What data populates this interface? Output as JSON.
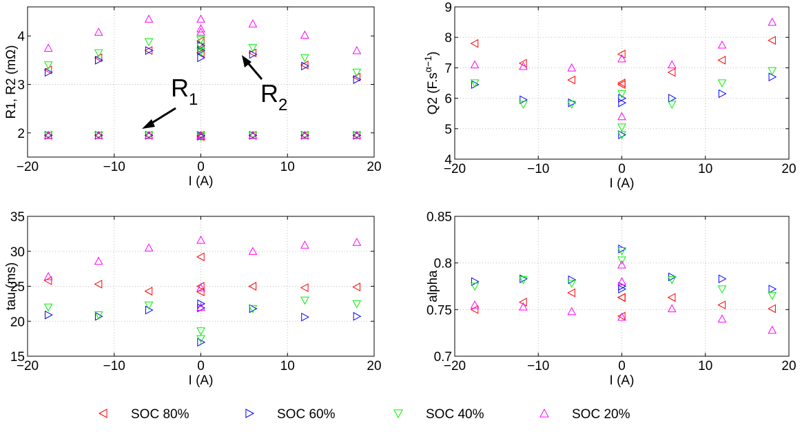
{
  "colors": {
    "soc80": "#ff0000",
    "soc60": "#0000ff",
    "soc40": "#00ee00",
    "soc20": "#ff00ff",
    "grid": "#bbbbbb",
    "axis": "#000000",
    "arrow": "#000000"
  },
  "legend": [
    {
      "key": "soc80",
      "label": "SOC 80%",
      "marker": "triangle-left"
    },
    {
      "key": "soc60",
      "label": "SOC 60%",
      "marker": "triangle-right"
    },
    {
      "key": "soc40",
      "label": "SOC 40%",
      "marker": "triangle-down"
    },
    {
      "key": "soc20",
      "label": "SOC 20%",
      "marker": "triangle-up"
    }
  ],
  "chart_data": [
    {
      "type": "scatter",
      "id": "r1r2",
      "xlabel": "I (A)",
      "ylabel": "R1, R2 (mΩ)",
      "xlim": [
        -20,
        20
      ],
      "ylim": [
        1.5,
        4.6
      ],
      "xticks": [
        -20,
        -10,
        0,
        10,
        20
      ],
      "yticks": [
        2,
        3,
        4
      ],
      "xtick_labels": [
        "−20",
        "−10",
        "0",
        "10",
        "20"
      ],
      "ytick_labels": [
        "2",
        "3",
        "4"
      ],
      "grid": true,
      "annotations": [
        {
          "text": "R",
          "sub": "1",
          "x": -8,
          "y": 2.9
        },
        {
          "text": "R",
          "sub": "2",
          "x": 6.3,
          "y": 3.0
        }
      ],
      "series": [
        {
          "key": "soc80",
          "points": [
            [
              -17.6,
              3.3
            ],
            [
              -11.8,
              3.55
            ],
            [
              -6,
              3.7
            ],
            [
              0,
              3.9
            ],
            [
              0,
              3.75
            ],
            [
              0,
              3.65
            ],
            [
              6,
              3.65
            ],
            [
              12,
              3.4
            ],
            [
              18,
              3.15
            ],
            [
              -17.6,
              1.95
            ],
            [
              -11.8,
              1.95
            ],
            [
              -6,
              1.95
            ],
            [
              0,
              1.95
            ],
            [
              0,
              1.92
            ],
            [
              6,
              1.95
            ],
            [
              12,
              1.95
            ],
            [
              18,
              1.95
            ]
          ]
        },
        {
          "key": "soc60",
          "points": [
            [
              -17.6,
              3.25
            ],
            [
              -11.8,
              3.5
            ],
            [
              -6,
              3.7
            ],
            [
              0,
              3.8
            ],
            [
              0,
              3.7
            ],
            [
              0,
              3.55
            ],
            [
              6,
              3.62
            ],
            [
              12,
              3.38
            ],
            [
              18,
              3.1
            ],
            [
              -17.6,
              1.95
            ],
            [
              -11.8,
              1.95
            ],
            [
              -6,
              1.95
            ],
            [
              0,
              1.95
            ],
            [
              0,
              1.93
            ],
            [
              6,
              1.95
            ],
            [
              12,
              1.95
            ],
            [
              18,
              1.95
            ]
          ]
        },
        {
          "key": "soc40",
          "points": [
            [
              -17.6,
              3.4
            ],
            [
              -11.8,
              3.65
            ],
            [
              -6,
              3.88
            ],
            [
              0,
              3.92
            ],
            [
              0,
              3.78
            ],
            [
              0,
              3.68
            ],
            [
              6,
              3.76
            ],
            [
              12,
              3.55
            ],
            [
              18,
              3.25
            ],
            [
              -17.6,
              1.95
            ],
            [
              -11.8,
              1.95
            ],
            [
              -6,
              1.95
            ],
            [
              0,
              1.95
            ],
            [
              0,
              1.92
            ],
            [
              6,
              1.95
            ],
            [
              12,
              1.95
            ],
            [
              18,
              1.95
            ]
          ]
        },
        {
          "key": "soc20",
          "points": [
            [
              -17.6,
              3.75
            ],
            [
              -11.8,
              4.08
            ],
            [
              -6,
              4.35
            ],
            [
              0,
              4.35
            ],
            [
              0,
              4.15
            ],
            [
              0,
              4.08
            ],
            [
              6,
              4.25
            ],
            [
              12,
              4.02
            ],
            [
              18,
              3.7
            ],
            [
              -17.6,
              1.95
            ],
            [
              -11.8,
              1.95
            ],
            [
              -6,
              1.95
            ],
            [
              0,
              1.95
            ],
            [
              0,
              1.93
            ],
            [
              6,
              1.95
            ],
            [
              12,
              1.95
            ],
            [
              18,
              1.95
            ]
          ]
        }
      ]
    },
    {
      "type": "scatter",
      "id": "q2",
      "xlabel": "I (A)",
      "ylabel": "Q2 (F.s",
      "ylabel_sup": "α−1",
      "ylabel_end": ")",
      "xlim": [
        -20,
        20
      ],
      "ylim": [
        4,
        9
      ],
      "xticks": [
        -20,
        -10,
        0,
        10,
        20
      ],
      "yticks": [
        4,
        5,
        6,
        7,
        8,
        9
      ],
      "xtick_labels": [
        "−20",
        "−10",
        "0",
        "10",
        "20"
      ],
      "ytick_labels": [
        "4",
        "5",
        "6",
        "7",
        "8",
        "9"
      ],
      "grid": true,
      "series": [
        {
          "key": "soc80",
          "points": [
            [
              -17.6,
              7.8
            ],
            [
              -11.8,
              7.15
            ],
            [
              -6,
              6.6
            ],
            [
              0,
              7.45
            ],
            [
              0,
              6.5
            ],
            [
              0,
              6.45
            ],
            [
              6,
              6.85
            ],
            [
              12,
              7.25
            ],
            [
              18,
              7.9
            ]
          ]
        },
        {
          "key": "soc60",
          "points": [
            [
              -17.6,
              6.45
            ],
            [
              -11.8,
              5.95
            ],
            [
              -6,
              5.85
            ],
            [
              0,
              5.85
            ],
            [
              0,
              6.0
            ],
            [
              0,
              4.8
            ],
            [
              6,
              6.0
            ],
            [
              12,
              6.15
            ],
            [
              18,
              6.7
            ]
          ]
        },
        {
          "key": "soc40",
          "points": [
            [
              -17.6,
              6.5
            ],
            [
              -11.8,
              5.8
            ],
            [
              -6,
              5.8
            ],
            [
              0,
              6.15
            ],
            [
              0,
              5.05
            ],
            [
              0,
              4.8
            ],
            [
              6,
              5.8
            ],
            [
              12,
              6.5
            ],
            [
              18,
              6.9
            ]
          ]
        },
        {
          "key": "soc20",
          "points": [
            [
              -17.6,
              7.1
            ],
            [
              -11.8,
              7.05
            ],
            [
              -6,
              7.0
            ],
            [
              0,
              7.3
            ],
            [
              0,
              5.4
            ],
            [
              6,
              7.1
            ],
            [
              12,
              7.75
            ],
            [
              18,
              8.5
            ]
          ]
        }
      ]
    },
    {
      "type": "scatter",
      "id": "tau",
      "xlabel": "I (A)",
      "ylabel": "tau (ms)",
      "xlim": [
        -20,
        20
      ],
      "ylim": [
        15,
        35
      ],
      "xticks": [
        -20,
        -10,
        0,
        10,
        20
      ],
      "yticks": [
        15,
        20,
        25,
        30,
        35
      ],
      "xtick_labels": [
        "−20",
        "−10",
        "0",
        "10",
        "20"
      ],
      "ytick_labels": [
        "15",
        "20",
        "25",
        "30",
        "35"
      ],
      "grid": true,
      "series": [
        {
          "key": "soc80",
          "points": [
            [
              -17.6,
              25.8
            ],
            [
              -11.8,
              25.3
            ],
            [
              -6,
              24.3
            ],
            [
              0,
              29.2
            ],
            [
              0,
              25.0
            ],
            [
              0,
              24.2
            ],
            [
              6,
              25.0
            ],
            [
              12,
              24.8
            ],
            [
              18,
              24.9
            ]
          ]
        },
        {
          "key": "soc60",
          "points": [
            [
              -17.6,
              20.9
            ],
            [
              -11.8,
              20.7
            ],
            [
              -6,
              21.6
            ],
            [
              0,
              22.5
            ],
            [
              0,
              21.9
            ],
            [
              0,
              17.0
            ],
            [
              6,
              21.8
            ],
            [
              12,
              20.6
            ],
            [
              18,
              20.7
            ]
          ]
        },
        {
          "key": "soc40",
          "points": [
            [
              -17.6,
              22.0
            ],
            [
              -11.8,
              20.9
            ],
            [
              -6,
              22.3
            ],
            [
              0,
              18.6
            ],
            [
              0,
              17.5
            ],
            [
              6,
              21.8
            ],
            [
              12,
              23.0
            ],
            [
              18,
              22.5
            ]
          ]
        },
        {
          "key": "soc20",
          "points": [
            [
              -17.6,
              26.4
            ],
            [
              -11.8,
              28.6
            ],
            [
              -6,
              30.5
            ],
            [
              0,
              31.6
            ],
            [
              0,
              24.8
            ],
            [
              0,
              22.0
            ],
            [
              6,
              30.0
            ],
            [
              12,
              30.9
            ],
            [
              18,
              31.3
            ]
          ]
        }
      ]
    },
    {
      "type": "scatter",
      "id": "alpha",
      "xlabel": "I (A)",
      "ylabel": "alpha",
      "xlim": [
        -20,
        20
      ],
      "ylim": [
        0.7,
        0.85
      ],
      "xticks": [
        -20,
        -10,
        0,
        10,
        20
      ],
      "yticks": [
        0.7,
        0.75,
        0.8,
        0.85
      ],
      "xtick_labels": [
        "−20",
        "−10",
        "0",
        "10",
        "20"
      ],
      "ytick_labels": [
        "0.7",
        "0.75",
        "0.8",
        "0.85"
      ],
      "grid": true,
      "series": [
        {
          "key": "soc80",
          "points": [
            [
              -17.6,
              0.75
            ],
            [
              -11.8,
              0.758
            ],
            [
              -6,
              0.768
            ],
            [
              0,
              0.763
            ],
            [
              0,
              0.763
            ],
            [
              0,
              0.743
            ],
            [
              6,
              0.763
            ],
            [
              12,
              0.755
            ],
            [
              18,
              0.751
            ]
          ]
        },
        {
          "key": "soc60",
          "points": [
            [
              -17.6,
              0.78
            ],
            [
              -11.8,
              0.783
            ],
            [
              -6,
              0.782
            ],
            [
              0,
              0.815
            ],
            [
              0,
              0.775
            ],
            [
              0,
              0.772
            ],
            [
              6,
              0.785
            ],
            [
              12,
              0.783
            ],
            [
              18,
              0.772
            ]
          ]
        },
        {
          "key": "soc40",
          "points": [
            [
              -17.6,
              0.775
            ],
            [
              -11.8,
              0.782
            ],
            [
              -6,
              0.778
            ],
            [
              0,
              0.813
            ],
            [
              0,
              0.803
            ],
            [
              6,
              0.782
            ],
            [
              12,
              0.772
            ],
            [
              18,
              0.765
            ]
          ]
        },
        {
          "key": "soc20",
          "points": [
            [
              -17.6,
              0.755
            ],
            [
              -11.8,
              0.753
            ],
            [
              -6,
              0.748
            ],
            [
              0,
              0.798
            ],
            [
              0,
              0.78
            ],
            [
              0,
              0.742
            ],
            [
              6,
              0.751
            ],
            [
              12,
              0.74
            ],
            [
              18,
              0.728
            ]
          ]
        }
      ]
    }
  ]
}
